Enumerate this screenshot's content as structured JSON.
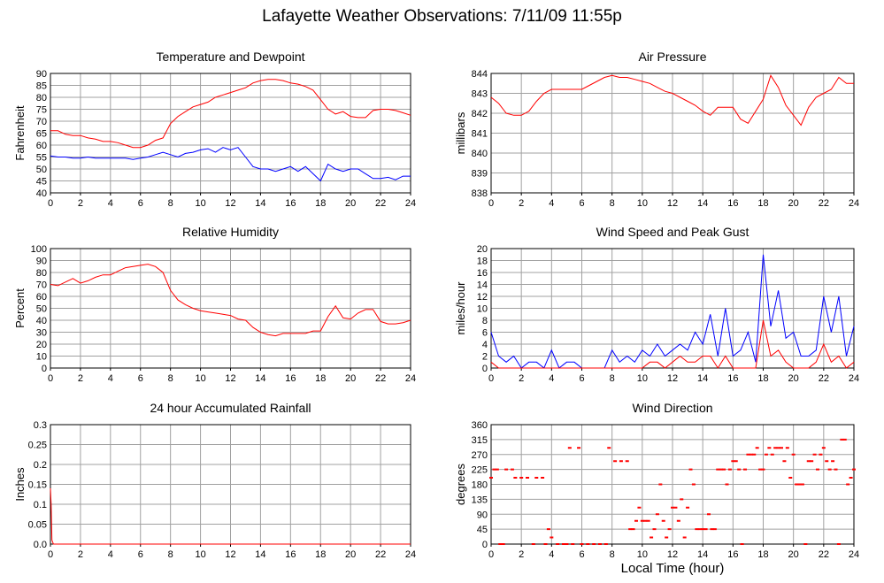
{
  "page": {
    "title": "Lafayette Weather Observations: 7/11/09 11:55p",
    "xlabel": "Local Time (hour)"
  },
  "colors": {
    "red": "#ff0000",
    "blue": "#0000ff",
    "grid": "#a0a0a0"
  },
  "chart_data": [
    {
      "id": "temp",
      "type": "line",
      "title": "Temperature and Dewpoint",
      "ylabel": "Fahrenheit",
      "xlim": [
        0,
        24
      ],
      "ylim": [
        40,
        90
      ],
      "xticks": [
        0,
        2,
        4,
        6,
        8,
        10,
        12,
        14,
        16,
        18,
        20,
        22,
        24
      ],
      "yticks": [
        40,
        45,
        50,
        55,
        60,
        65,
        70,
        75,
        80,
        85,
        90
      ],
      "series": [
        {
          "color": "#ff0000",
          "x": [
            0,
            0.5,
            1,
            1.5,
            2,
            2.5,
            3,
            3.5,
            4,
            4.5,
            5,
            5.5,
            6,
            6.5,
            7,
            7.5,
            8,
            8.5,
            9,
            9.5,
            10,
            10.5,
            11,
            11.5,
            12,
            12.5,
            13,
            13.5,
            14,
            14.5,
            15,
            15.5,
            16,
            16.5,
            17,
            17.5,
            18,
            18.5,
            19,
            19.5,
            20,
            20.5,
            21,
            21.5,
            22,
            22.5,
            23,
            23.5,
            24
          ],
          "y": [
            66,
            66,
            64.5,
            64,
            64,
            63,
            62.5,
            61.5,
            61.5,
            61,
            60,
            59,
            59,
            60,
            62,
            63,
            69,
            72,
            74,
            76,
            77,
            78,
            80,
            81,
            82,
            83,
            84,
            86,
            87,
            87.5,
            87.5,
            87,
            86,
            85.5,
            84.5,
            83,
            79,
            75,
            73,
            74,
            72,
            71.5,
            71.5,
            74.5,
            75,
            75,
            74.5,
            73.5,
            72.5
          ]
        },
        {
          "color": "#0000ff",
          "x": [
            0,
            0.5,
            1,
            1.5,
            2,
            2.5,
            3,
            3.5,
            4,
            4.5,
            5,
            5.5,
            6,
            6.5,
            7,
            7.5,
            8,
            8.5,
            9,
            9.5,
            10,
            10.5,
            11,
            11.5,
            12,
            12.5,
            13,
            13.5,
            14,
            14.5,
            15,
            15.5,
            16,
            16.5,
            17,
            17.5,
            18,
            18.5,
            19,
            19.5,
            20,
            20.5,
            21,
            21.5,
            22,
            22.5,
            23,
            23.5,
            24
          ],
          "y": [
            55.5,
            55,
            55,
            54.5,
            54.5,
            55,
            54.5,
            54.5,
            54.5,
            54.5,
            54.5,
            54,
            54.5,
            55,
            56,
            57,
            56,
            55,
            56.5,
            57,
            58,
            58.5,
            57,
            59,
            58,
            59,
            55,
            51,
            50,
            50,
            49,
            50,
            51,
            49,
            51,
            48,
            45,
            52,
            50,
            49,
            50,
            50,
            48,
            46,
            46,
            46.5,
            45.5,
            47,
            47
          ]
        }
      ]
    },
    {
      "id": "pressure",
      "type": "line",
      "title": "Air Pressure",
      "ylabel": "millibars",
      "xlim": [
        0,
        24
      ],
      "ylim": [
        838,
        844
      ],
      "xticks": [
        0,
        2,
        4,
        6,
        8,
        10,
        12,
        14,
        16,
        18,
        20,
        22,
        24
      ],
      "yticks": [
        838,
        839,
        840,
        841,
        842,
        843,
        844
      ],
      "series": [
        {
          "color": "#ff0000",
          "x": [
            0,
            0.5,
            1,
            1.5,
            2,
            2.5,
            3,
            3.5,
            4,
            4.5,
            5,
            5.5,
            6,
            6.5,
            7,
            7.5,
            8,
            8.5,
            9,
            9.5,
            10,
            10.5,
            11,
            11.5,
            12,
            12.5,
            13,
            13.5,
            14,
            14.5,
            15,
            15.5,
            16,
            16.5,
            17,
            17.5,
            18,
            18.5,
            19,
            19.5,
            20,
            20.5,
            21,
            21.5,
            22,
            22.5,
            23,
            23.5,
            24
          ],
          "y": [
            842.8,
            842.5,
            842,
            841.9,
            841.9,
            842.1,
            842.6,
            843.0,
            843.2,
            843.2,
            843.2,
            843.2,
            843.2,
            843.4,
            843.6,
            843.8,
            843.9,
            843.8,
            843.8,
            843.7,
            843.6,
            843.5,
            843.3,
            843.1,
            843.0,
            842.8,
            842.6,
            842.4,
            842.1,
            841.9,
            842.3,
            842.3,
            842.3,
            841.7,
            841.5,
            842.1,
            842.7,
            843.9,
            843.3,
            842.4,
            841.9,
            841.4,
            842.3,
            842.8,
            843.0,
            843.2,
            843.8,
            843.5,
            843.5
          ]
        }
      ]
    },
    {
      "id": "rh",
      "type": "line",
      "title": "Relative Humidity",
      "ylabel": "Percent",
      "xlim": [
        0,
        24
      ],
      "ylim": [
        0,
        100
      ],
      "xticks": [
        0,
        2,
        4,
        6,
        8,
        10,
        12,
        14,
        16,
        18,
        20,
        22,
        24
      ],
      "yticks": [
        0,
        10,
        20,
        30,
        40,
        50,
        60,
        70,
        80,
        90,
        100
      ],
      "series": [
        {
          "color": "#ff0000",
          "x": [
            0,
            0.5,
            1,
            1.5,
            2,
            2.5,
            3,
            3.5,
            4,
            4.5,
            5,
            5.5,
            6,
            6.5,
            7,
            7.5,
            8,
            8.5,
            9,
            9.5,
            10,
            10.5,
            11,
            11.5,
            12,
            12.5,
            13,
            13.5,
            14,
            14.5,
            15,
            15.5,
            16,
            16.5,
            17,
            17.5,
            18,
            18.5,
            19,
            19.5,
            20,
            20.5,
            21,
            21.5,
            22,
            22.5,
            23,
            23.5,
            24
          ],
          "y": [
            70,
            69,
            72,
            75,
            71,
            73,
            76,
            78,
            78,
            81,
            84,
            85,
            86,
            87,
            85,
            80,
            65,
            57,
            53,
            50,
            48,
            47,
            46,
            45,
            44,
            41,
            40,
            34,
            30,
            28,
            27,
            29,
            29,
            29,
            29,
            31,
            31,
            43,
            52,
            42,
            41,
            46,
            49,
            49,
            39,
            37,
            37,
            38,
            40
          ]
        }
      ]
    },
    {
      "id": "wind",
      "type": "line",
      "title": "Wind Speed and Peak Gust",
      "ylabel": "miles/hour",
      "xlim": [
        0,
        24
      ],
      "ylim": [
        0,
        20
      ],
      "xticks": [
        0,
        2,
        4,
        6,
        8,
        10,
        12,
        14,
        16,
        18,
        20,
        22,
        24
      ],
      "yticks": [
        0,
        2,
        4,
        6,
        8,
        10,
        12,
        14,
        16,
        18,
        20
      ],
      "series": [
        {
          "color": "#0000ff",
          "x": [
            0,
            0.5,
            1,
            1.5,
            2,
            2.5,
            3,
            3.5,
            4,
            4.5,
            5,
            5.5,
            6,
            6.5,
            7,
            7.5,
            8,
            8.5,
            9,
            9.5,
            10,
            10.5,
            11,
            11.5,
            12,
            12.5,
            13,
            13.5,
            14,
            14.5,
            15,
            15.5,
            16,
            16.5,
            17,
            17.5,
            18,
            18.5,
            19,
            19.5,
            20,
            20.5,
            21,
            21.5,
            22,
            22.5,
            23,
            23.5,
            24
          ],
          "y": [
            6,
            2,
            1,
            2,
            0,
            1,
            1,
            0,
            3,
            0,
            1,
            1,
            0,
            0,
            0,
            0,
            3,
            1,
            2,
            1,
            3,
            2,
            4,
            2,
            3,
            4,
            3,
            6,
            4,
            9,
            2,
            10,
            2,
            3,
            6,
            1,
            19,
            7,
            13,
            5,
            6,
            2,
            2,
            3,
            12,
            6,
            12,
            2,
            7
          ]
        },
        {
          "color": "#ff0000",
          "x": [
            0,
            0.5,
            1,
            1.5,
            2,
            2.5,
            3,
            3.5,
            4,
            4.5,
            5,
            5.5,
            6,
            6.5,
            7,
            7.5,
            8,
            8.5,
            9,
            9.5,
            10,
            10.5,
            11,
            11.5,
            12,
            12.5,
            13,
            13.5,
            14,
            14.5,
            15,
            15.5,
            16,
            16.5,
            17,
            17.5,
            18,
            18.5,
            19,
            19.5,
            20,
            20.5,
            21,
            21.5,
            22,
            22.5,
            23,
            23.5,
            24
          ],
          "y": [
            1,
            0,
            0,
            0,
            0,
            0,
            0,
            0,
            0,
            0,
            0,
            0,
            0,
            0,
            0,
            0,
            0,
            0,
            0,
            0,
            0,
            1,
            1,
            0,
            1,
            2,
            1,
            1,
            2,
            2,
            0,
            2,
            0,
            0,
            0,
            0,
            8,
            2,
            3,
            1,
            0,
            0,
            0,
            1,
            4,
            1,
            2,
            0,
            1
          ]
        }
      ]
    },
    {
      "id": "rain",
      "type": "line",
      "title": "24 hour Accumulated Rainfall",
      "ylabel": "Inches",
      "xlim": [
        0,
        24
      ],
      "ylim": [
        0,
        0.3
      ],
      "xticks": [
        0,
        2,
        4,
        6,
        8,
        10,
        12,
        14,
        16,
        18,
        20,
        22,
        24
      ],
      "yticks": [
        0,
        0.05,
        0.1,
        0.15,
        0.2,
        0.25,
        0.3
      ],
      "yticklabels": [
        "0.0",
        "0.05",
        "0.1",
        "0.15",
        "0.2",
        "0.25",
        "0.3"
      ],
      "series": [
        {
          "color": "#ff0000",
          "x": [
            0,
            0.05,
            0.1,
            0.2,
            24
          ],
          "y": [
            0.14,
            0.1,
            0.01,
            0,
            0
          ]
        }
      ]
    },
    {
      "id": "dir",
      "type": "scatter",
      "title": "Wind Direction",
      "ylabel": "degrees",
      "xlim": [
        0,
        24
      ],
      "ylim": [
        0,
        360
      ],
      "xticks": [
        0,
        2,
        4,
        6,
        8,
        10,
        12,
        14,
        16,
        18,
        20,
        22,
        24
      ],
      "yticks": [
        0,
        45,
        90,
        135,
        180,
        225,
        270,
        315,
        360
      ],
      "series": [
        {
          "color": "#ff0000",
          "x": [
            0,
            0.2,
            0.4,
            0.6,
            0.8,
            1.0,
            1.4,
            1.6,
            2.0,
            2.4,
            2.8,
            3.0,
            3.4,
            3.6,
            3.8,
            4.0,
            4.4,
            4.8,
            5.0,
            5.2,
            5.4,
            5.8,
            6.0,
            6.4,
            6.8,
            7.2,
            7.6,
            7.8,
            8.2,
            8.6,
            9.0,
            9.2,
            9.4,
            9.6,
            9.8,
            10.0,
            10.2,
            10.4,
            10.6,
            10.8,
            11.0,
            11.2,
            11.4,
            11.6,
            11.8,
            12.0,
            12.2,
            12.4,
            12.6,
            12.8,
            13.0,
            13.2,
            13.4,
            13.6,
            13.8,
            14.0,
            14.2,
            14.4,
            14.6,
            14.8,
            15.0,
            15.2,
            15.4,
            15.6,
            15.8,
            16.0,
            16.2,
            16.4,
            16.6,
            16.8,
            17.0,
            17.2,
            17.4,
            17.6,
            17.8,
            18.0,
            18.2,
            18.4,
            18.6,
            18.8,
            19.0,
            19.2,
            19.4,
            19.6,
            19.8,
            20.0,
            20.2,
            20.4,
            20.6,
            20.8,
            21.0,
            21.2,
            21.4,
            21.6,
            21.8,
            22.0,
            22.2,
            22.4,
            22.6,
            22.8,
            23.0,
            23.2,
            23.4,
            23.6,
            23.8,
            24.0
          ],
          "y": [
            200,
            225,
            225,
            0,
            0,
            225,
            225,
            200,
            200,
            200,
            0,
            200,
            200,
            0,
            45,
            20,
            0,
            0,
            0,
            290,
            0,
            290,
            0,
            0,
            0,
            0,
            0,
            290,
            250,
            250,
            250,
            45,
            45,
            70,
            110,
            70,
            70,
            70,
            20,
            45,
            90,
            180,
            70,
            20,
            45,
            110,
            110,
            70,
            135,
            20,
            110,
            225,
            180,
            45,
            45,
            45,
            45,
            90,
            45,
            45,
            225,
            225,
            225,
            180,
            225,
            250,
            250,
            225,
            0,
            225,
            270,
            270,
            270,
            290,
            225,
            225,
            270,
            290,
            270,
            290,
            290,
            290,
            250,
            290,
            200,
            270,
            180,
            180,
            180,
            0,
            250,
            250,
            270,
            225,
            270,
            290,
            250,
            225,
            250,
            225,
            0,
            315,
            315,
            180,
            200,
            225
          ]
        }
      ]
    }
  ]
}
